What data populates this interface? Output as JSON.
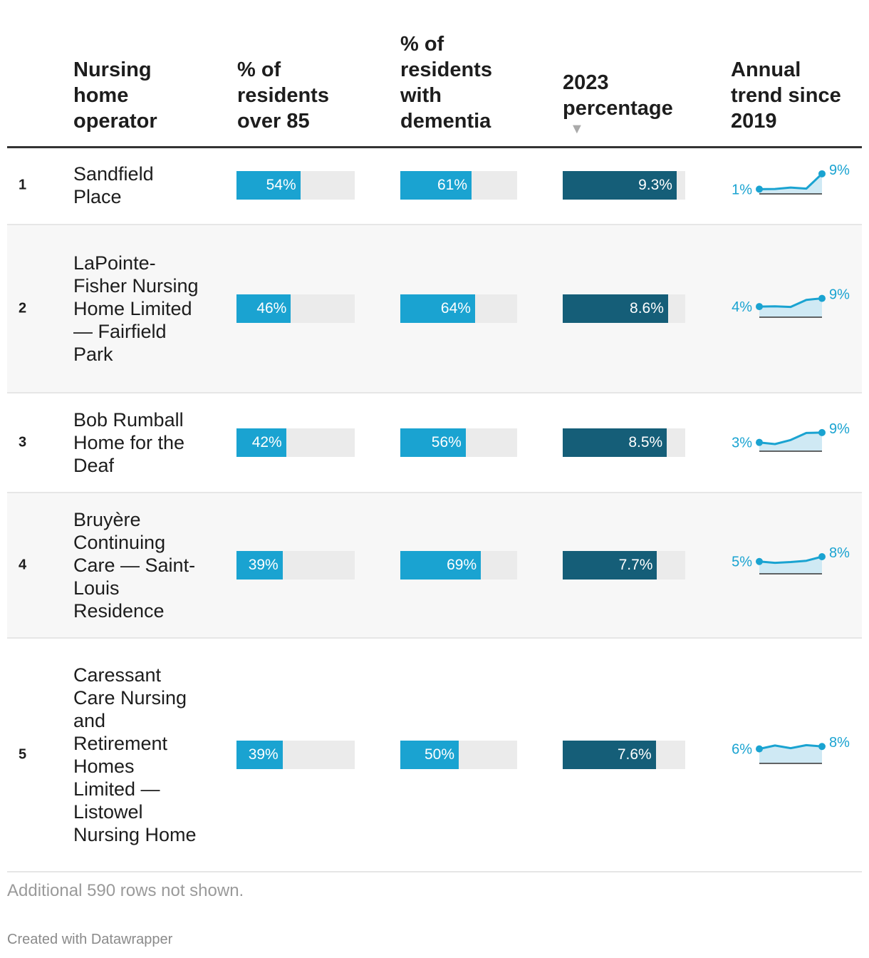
{
  "chart_data": {
    "type": "table",
    "title": "",
    "columns": [
      {
        "key": "operator",
        "label": "Nursing home operator"
      },
      {
        "key": "over85",
        "label": "% of residents over 85"
      },
      {
        "key": "dementia",
        "label": "% of residents with dementia"
      },
      {
        "key": "pct2023",
        "label": "2023 percentage",
        "sorted": "descending",
        "sort_indicator": "▼"
      },
      {
        "key": "trend",
        "label": "Annual trend since 2019"
      }
    ],
    "bar_max": {
      "over85": 100,
      "dementia": 100,
      "pct2023": 10
    },
    "rows": [
      {
        "rank": "1",
        "operator": "Sandfield Place",
        "over85": 54,
        "over85_label": "54%",
        "dementia": 61,
        "dementia_label": "61%",
        "pct2023": 9.3,
        "pct2023_label": "9.3%",
        "trend": [
          1.0,
          1.1,
          1.9,
          1.3,
          9.3
        ],
        "trend_start_label": "1%",
        "trend_end_label": "9%"
      },
      {
        "rank": "2",
        "operator": "LaPointe-Fisher Nursing Home Limited — Fairfield Park",
        "over85": 46,
        "over85_label": "46%",
        "dementia": 64,
        "dementia_label": "64%",
        "pct2023": 8.6,
        "pct2023_label": "8.6%",
        "trend": [
          4.2,
          4.3,
          4.0,
          7.8,
          8.6
        ],
        "trend_start_label": "4%",
        "trend_end_label": "9%"
      },
      {
        "rank": "3",
        "operator": "Bob Rumball Home for the Deaf",
        "over85": 42,
        "over85_label": "42%",
        "dementia": 56,
        "dementia_label": "56%",
        "pct2023": 8.5,
        "pct2023_label": "8.5%",
        "trend": [
          3.2,
          2.3,
          4.5,
          8.3,
          8.5
        ],
        "trend_start_label": "3%",
        "trend_end_label": "9%"
      },
      {
        "rank": "4",
        "operator": "Bruyère Continuing Care — Saint-Louis Residence",
        "over85": 39,
        "over85_label": "39%",
        "dementia": 69,
        "dementia_label": "69%",
        "pct2023": 7.7,
        "pct2023_label": "7.7%",
        "trend": [
          5.1,
          4.4,
          4.8,
          5.5,
          7.7
        ],
        "trend_start_label": "5%",
        "trend_end_label": "8%"
      },
      {
        "rank": "5",
        "operator": "Caressant Care Nursing and Retirement Homes Limited — Listowel Nursing Home",
        "over85": 39,
        "over85_label": "39%",
        "dementia": 50,
        "dementia_label": "50%",
        "pct2023": 7.6,
        "pct2023_label": "7.6%",
        "trend": [
          6.3,
          8.1,
          6.7,
          8.3,
          7.6
        ],
        "trend_start_label": "6%",
        "trend_end_label": "8%"
      }
    ]
  },
  "footer": {
    "note": "Additional 590 rows not shown.",
    "credit": "Created with Datawrapper"
  },
  "colors": {
    "bar_light": "#1aa3d1",
    "bar_dark": "#155e78",
    "bar_track": "#ebebeb",
    "spark_line": "#1aa3d1",
    "spark_fill": "#cfe9f4",
    "row_alt": "#f7f7f7"
  }
}
